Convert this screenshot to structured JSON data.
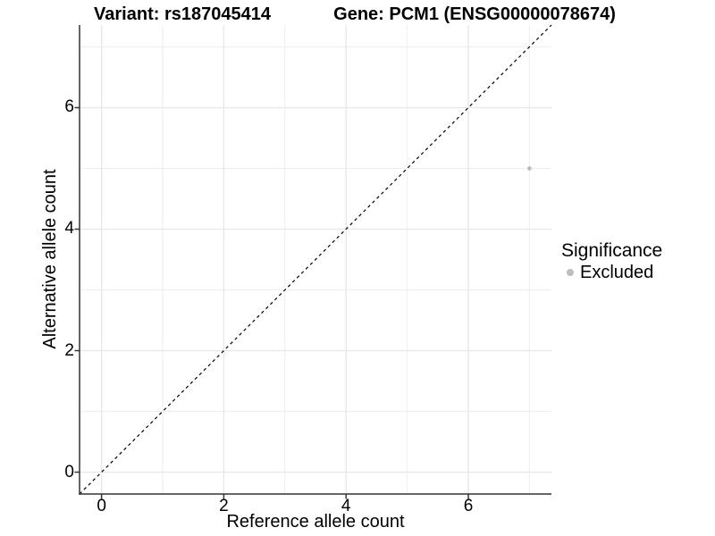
{
  "chart_data": {
    "type": "scatter",
    "titles": {
      "variant": "Variant: rs187045414",
      "gene": "Gene: PCM1 (ENSG00000078674)"
    },
    "xlabel": "Reference allele count",
    "ylabel": "Alternative allele count",
    "xlim": [
      -0.36,
      7.36
    ],
    "ylim": [
      -0.36,
      7.36
    ],
    "x_major_ticks": [
      0,
      2,
      4,
      6
    ],
    "y_major_ticks": [
      0,
      2,
      4,
      6
    ],
    "x_minor_gridlines": [
      1,
      3,
      5,
      7
    ],
    "y_minor_gridlines": [
      1,
      3,
      5,
      7
    ],
    "grid": "major and minor gridlines on, light gray, white background",
    "legend_position": "right",
    "series": [
      {
        "name": "Excluded",
        "color": "#bdbdbd",
        "points": [
          {
            "x": 7,
            "y": 5
          }
        ]
      }
    ],
    "reference_line": {
      "kind": "identity y=x",
      "style": "dashed",
      "color": "#000000"
    },
    "legend": {
      "title": "Significance",
      "items": [
        {
          "label": "Excluded",
          "color": "#bdbdbd"
        }
      ]
    }
  },
  "colors": {
    "background": "#ffffff",
    "grid_major": "#e7e7e7",
    "grid_minor": "#efefef",
    "axis_line": "#333333",
    "tick_mark": "#333333",
    "point": "#bdbdbd",
    "text": "#000000"
  }
}
